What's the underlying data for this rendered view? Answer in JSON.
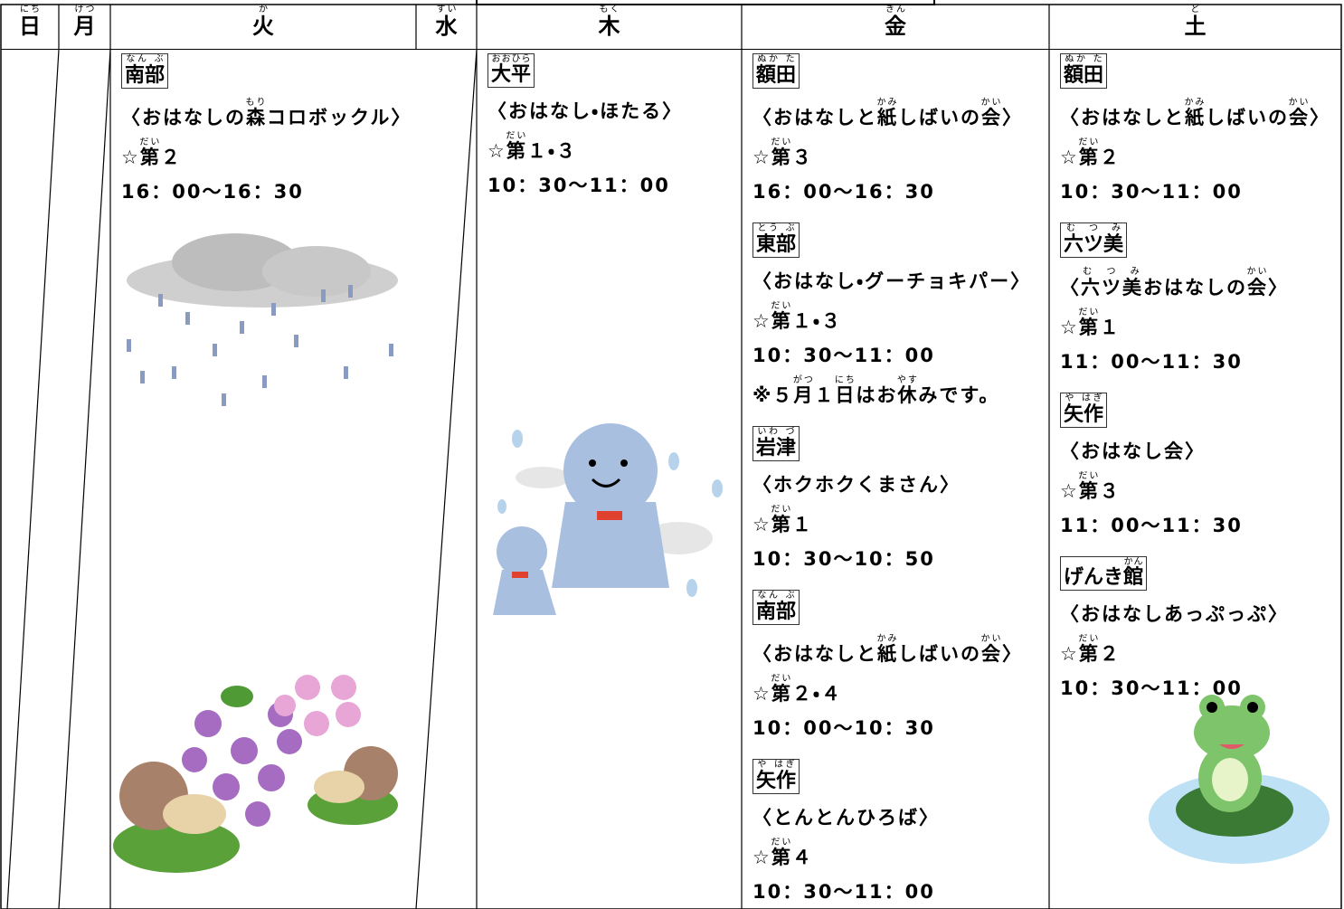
{
  "columns": [
    {
      "day": [
        {
          "t": "日",
          "r": "にち"
        }
      ],
      "entries": []
    },
    {
      "day": [
        {
          "t": "月",
          "r": "げつ"
        }
      ],
      "entries": []
    },
    {
      "day": [
        {
          "t": "火",
          "r": "か"
        }
      ],
      "entries": [
        {
          "place": [
            {
              "t": "南部",
              "r": "なん ぶ"
            }
          ],
          "lines": [
            [
              {
                "t": "〈おはなしの"
              },
              {
                "t": "森",
                "r": "もり"
              },
              {
                "t": "コロボックル〉"
              }
            ],
            [
              {
                "t": "☆"
              },
              {
                "t": "第",
                "r": "だい"
              },
              {
                "t": "２"
              }
            ],
            [
              {
                "t": "16：00～16：30"
              }
            ]
          ]
        }
      ]
    },
    {
      "day": [
        {
          "t": "水",
          "r": "すい"
        }
      ],
      "entries": []
    },
    {
      "day": [
        {
          "t": "木",
          "r": "もく"
        }
      ],
      "entries": [
        {
          "place": [
            {
              "t": "大平",
              "r": "おおひら"
            }
          ],
          "lines": [
            [
              {
                "t": "〈おはなし・ほたる〉"
              }
            ],
            [
              {
                "t": "☆"
              },
              {
                "t": "第",
                "r": "だい"
              },
              {
                "t": "１・３"
              }
            ],
            [
              {
                "t": "10：30～11：00"
              }
            ]
          ]
        }
      ]
    },
    {
      "day": [
        {
          "t": "金",
          "r": "きん"
        }
      ],
      "entries": [
        {
          "place": [
            {
              "t": "額田",
              "r": "ぬか た"
            }
          ],
          "lines": [
            [
              {
                "t": "〈おはなしと"
              },
              {
                "t": "紙",
                "r": "かみ"
              },
              {
                "t": "しばいの"
              },
              {
                "t": "会",
                "r": "かい"
              },
              {
                "t": "〉"
              }
            ],
            [
              {
                "t": "☆"
              },
              {
                "t": "第",
                "r": "だい"
              },
              {
                "t": "３"
              }
            ],
            [
              {
                "t": "16：00～16：30"
              }
            ]
          ]
        },
        {
          "place": [
            {
              "t": "東部",
              "r": "とう ぶ"
            }
          ],
          "lines": [
            [
              {
                "t": "〈おはなし・グーチョキパー〉"
              }
            ],
            [
              {
                "t": "☆"
              },
              {
                "t": "第",
                "r": "だい"
              },
              {
                "t": "１・３"
              }
            ],
            [
              {
                "t": "10：30～11：00"
              }
            ],
            [
              {
                "t": "※５"
              },
              {
                "t": "月",
                "r": "がつ"
              },
              {
                "t": "１"
              },
              {
                "t": "日",
                "r": "にち"
              },
              {
                "t": "はお"
              },
              {
                "t": "休",
                "r": "やす"
              },
              {
                "t": "みです。"
              }
            ]
          ]
        },
        {
          "place": [
            {
              "t": "岩津",
              "r": "いわ づ"
            }
          ],
          "lines": [
            [
              {
                "t": "〈ホクホクくまさん〉"
              }
            ],
            [
              {
                "t": "☆"
              },
              {
                "t": "第",
                "r": "だい"
              },
              {
                "t": "１"
              }
            ],
            [
              {
                "t": "10：30～10：50"
              }
            ]
          ]
        },
        {
          "place": [
            {
              "t": "南部",
              "r": "なん ぶ"
            }
          ],
          "lines": [
            [
              {
                "t": "〈おはなしと"
              },
              {
                "t": "紙",
                "r": "かみ"
              },
              {
                "t": "しばいの"
              },
              {
                "t": "会",
                "r": "かい"
              },
              {
                "t": "〉"
              }
            ],
            [
              {
                "t": "☆"
              },
              {
                "t": "第",
                "r": "だい"
              },
              {
                "t": "２・４"
              }
            ],
            [
              {
                "t": "10：00～10：30"
              }
            ]
          ]
        },
        {
          "place": [
            {
              "t": "矢作",
              "r": "や はぎ"
            }
          ],
          "lines": [
            [
              {
                "t": "〈とんとんひろば〉"
              }
            ],
            [
              {
                "t": "☆"
              },
              {
                "t": "第",
                "r": "だい"
              },
              {
                "t": "４"
              }
            ],
            [
              {
                "t": "10：30～11：00"
              }
            ]
          ]
        }
      ]
    },
    {
      "day": [
        {
          "t": "土",
          "r": "ど"
        }
      ],
      "entries": [
        {
          "place": [
            {
              "t": "額田",
              "r": "ぬか た"
            }
          ],
          "lines": [
            [
              {
                "t": "〈おはなしと"
              },
              {
                "t": "紙",
                "r": "かみ"
              },
              {
                "t": "しばいの"
              },
              {
                "t": "会",
                "r": "かい"
              },
              {
                "t": "〉"
              }
            ],
            [
              {
                "t": "☆"
              },
              {
                "t": "第",
                "r": "だい"
              },
              {
                "t": "２"
              }
            ],
            [
              {
                "t": "10：30～11：00"
              }
            ]
          ]
        },
        {
          "place": [
            {
              "t": "六ツ美",
              "r": "む つ み"
            }
          ],
          "lines": [
            [
              {
                "t": "〈"
              },
              {
                "t": "六ツ美",
                "r": "む つ み"
              },
              {
                "t": "おはなしの"
              },
              {
                "t": "会",
                "r": "かい"
              },
              {
                "t": "〉"
              }
            ],
            [
              {
                "t": "☆"
              },
              {
                "t": "第",
                "r": "だい"
              },
              {
                "t": "１"
              }
            ],
            [
              {
                "t": "11：00～11：30"
              }
            ]
          ]
        },
        {
          "place": [
            {
              "t": "矢作",
              "r": "や はぎ"
            }
          ],
          "lines": [
            [
              {
                "t": "〈おはなし会〉"
              }
            ],
            [
              {
                "t": "☆"
              },
              {
                "t": "第",
                "r": "だい"
              },
              {
                "t": "３"
              }
            ],
            [
              {
                "t": "11：00～11：30"
              }
            ]
          ]
        },
        {
          "place": [
            {
              "t": "げんき"
            },
            {
              "t": "館",
              "r": "かん"
            }
          ],
          "lines": [
            [
              {
                "t": "〈おはなしあっぷっぷ〉"
              }
            ],
            [
              {
                "t": "☆"
              },
              {
                "t": "第",
                "r": "だい"
              },
              {
                "t": "２"
              }
            ],
            [
              {
                "t": "10：30～11：00"
              }
            ]
          ]
        }
      ]
    }
  ]
}
